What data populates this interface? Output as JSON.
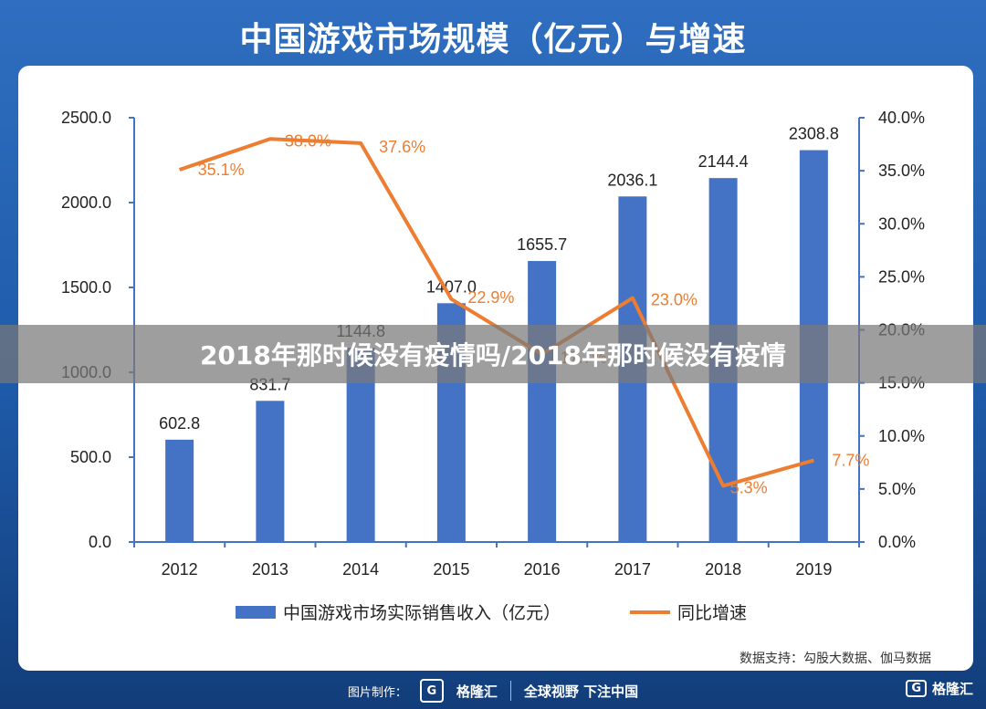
{
  "header": {
    "title": "中国游戏市场规模（亿元）与增速"
  },
  "banner": {
    "text": "2018年那时候没有疫情吗/2018年那时候没有疫情"
  },
  "source": {
    "text": "数据支持：勾股大数据、伽马数据"
  },
  "footer": {
    "made_by": "图片制作：",
    "logo_glyph": "G",
    "brand": "格隆汇",
    "slogan": "全球视野 下注中国"
  },
  "corner": {
    "logo_glyph": "G",
    "brand": "格隆汇"
  },
  "colors": {
    "bar": "#4472c4",
    "line": "#ed7d31",
    "axis": "#4472c4"
  },
  "chart_data": {
    "type": "bar+line",
    "title": "中国游戏市场规模（亿元）与增速",
    "categories": [
      "2012",
      "2013",
      "2014",
      "2015",
      "2016",
      "2017",
      "2018",
      "2019"
    ],
    "series": [
      {
        "name": "中国游戏市场实际销售收入（亿元）",
        "type": "bar",
        "axis": "left",
        "values": [
          602.8,
          831.7,
          1144.8,
          1407.0,
          1655.7,
          2036.1,
          2144.4,
          2308.8
        ],
        "labels": [
          "602.8",
          "831.7",
          "1144.8",
          "1407.0",
          "1655.7",
          "2036.1",
          "2144.4",
          "2308.8"
        ]
      },
      {
        "name": "同比增速",
        "type": "line",
        "axis": "right",
        "values": [
          35.1,
          38.0,
          37.6,
          22.9,
          17.7,
          23.0,
          5.3,
          7.7
        ],
        "labels": [
          "35.1%",
          "38.0%",
          "37.6%",
          "22.9%",
          "17.7%",
          "23.0%",
          "5.3%",
          "7.7%"
        ]
      }
    ],
    "y_left": {
      "range": [
        0,
        2500
      ],
      "ticks": [
        "0.0",
        "500.0",
        "1000.0",
        "1500.0",
        "2000.0",
        "2500.0"
      ]
    },
    "y_right": {
      "range": [
        0,
        40
      ],
      "ticks": [
        "0.0%",
        "5.0%",
        "10.0%",
        "15.0%",
        "20.0%",
        "25.0%",
        "30.0%",
        "35.0%",
        "40.0%"
      ]
    },
    "grid": false,
    "legend_position": "bottom"
  }
}
